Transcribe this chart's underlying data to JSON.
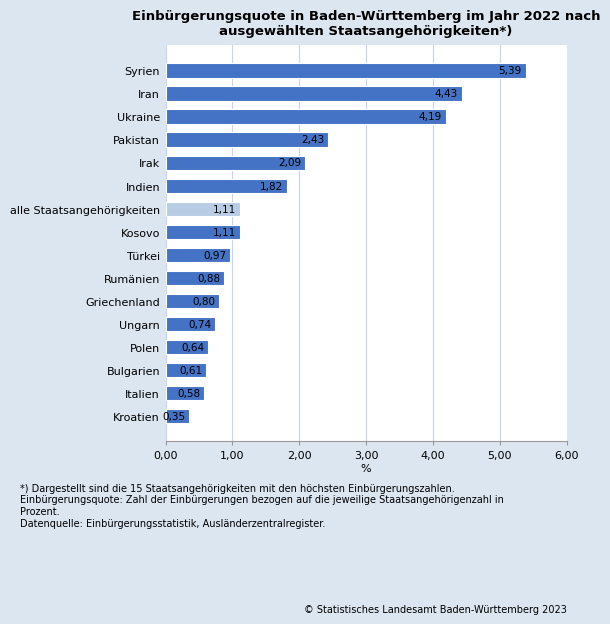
{
  "title": "Einbürgerungsquote in Baden-Württemberg im Jahr 2022 nach\nausgewählten Staatsangehörigkeiten*)",
  "categories": [
    "Kroatien",
    "Italien",
    "Bulgarien",
    "Polen",
    "Ungarn",
    "Griechenland",
    "Rumänien",
    "Türkei",
    "Kosovo",
    "alle Staatsangehörigkeiten",
    "Indien",
    "Irak",
    "Pakistan",
    "Ukraine",
    "Iran",
    "Syrien"
  ],
  "values": [
    0.35,
    0.58,
    0.61,
    0.64,
    0.74,
    0.8,
    0.88,
    0.97,
    1.11,
    1.11,
    1.82,
    2.09,
    2.43,
    4.19,
    4.43,
    5.39
  ],
  "bar_colors": [
    "#4472c4",
    "#4472c4",
    "#4472c4",
    "#4472c4",
    "#4472c4",
    "#4472c4",
    "#4472c4",
    "#4472c4",
    "#4472c4",
    "#b8cce4",
    "#4472c4",
    "#4472c4",
    "#4472c4",
    "#4472c4",
    "#4472c4",
    "#4472c4"
  ],
  "xlabel": "%",
  "xlim": [
    0,
    6.0
  ],
  "xticks": [
    0.0,
    1.0,
    2.0,
    3.0,
    4.0,
    5.0,
    6.0
  ],
  "xtick_labels": [
    "0,00",
    "1,00",
    "2,00",
    "3,00",
    "4,00",
    "5,00",
    "6,00"
  ],
  "footnote_line1": "*) Dargestellt sind die 15 Staatsangehörigkeiten mit den höchsten Einbürgerungszahlen.",
  "footnote_line2": "Einbürgerungsquote: Zahl der Einbürgerungen bezogen auf die jeweilige Staatsangehörigenzahl in",
  "footnote_line3": "Prozent.",
  "footnote_line4": "Datenquelle: Einbürgerungsstatistik, Ausländerzentralregister.",
  "copyright": "© Statistisches Landesamt Baden-Württemberg 2023",
  "title_fontsize": 9.5,
  "label_fontsize": 8,
  "value_fontsize": 7.5,
  "footnote_fontsize": 7,
  "outer_bg_color": "#dce6f1",
  "plot_bg_color": "#ffffff",
  "grid_color": "#c8d4e8",
  "bar_height": 0.62
}
